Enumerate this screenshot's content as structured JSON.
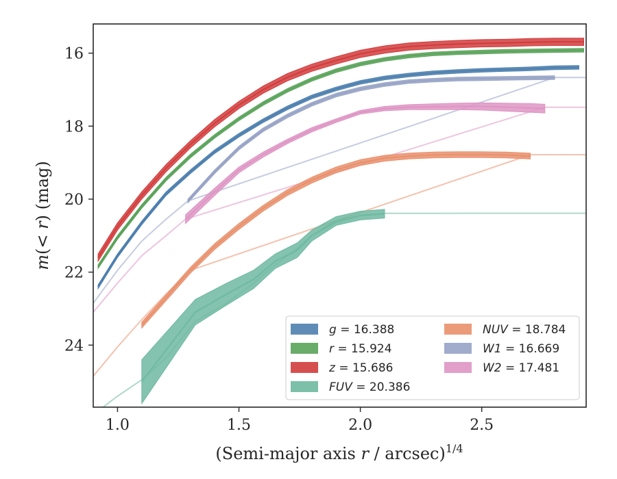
{
  "chart_data": {
    "type": "line",
    "xlabel": "(Semi-major axis r / arcsec)1/4",
    "ylabel": "m(< r) (mag)",
    "xlim": [
      0.9,
      2.93
    ],
    "ylim": [
      25.7,
      15.2
    ],
    "y_inverted": true,
    "xticks": [
      "1.0",
      "1.5",
      "2.0",
      "2.5"
    ],
    "yticks": [
      "16",
      "18",
      "20",
      "22",
      "24"
    ],
    "grid": false,
    "legend_position": "lower-right",
    "legend_columns": 2,
    "series": [
      {
        "name": "g = 16.388",
        "color": "#4c7fae",
        "total_mag": 16.388,
        "x": [
          0.92,
          1.0,
          1.1,
          1.2,
          1.3,
          1.4,
          1.5,
          1.6,
          1.7,
          1.8,
          1.9,
          2.0,
          2.1,
          2.2,
          2.3,
          2.4,
          2.5,
          2.6,
          2.7,
          2.8,
          2.9
        ],
        "y": [
          22.4,
          21.55,
          20.65,
          19.85,
          19.25,
          18.7,
          18.25,
          17.85,
          17.5,
          17.2,
          16.98,
          16.8,
          16.68,
          16.6,
          16.54,
          16.5,
          16.47,
          16.45,
          16.43,
          16.4,
          16.39
        ],
        "band": 0.05
      },
      {
        "name": "r = 15.924",
        "color": "#5aa35a",
        "total_mag": 15.924,
        "x": [
          0.92,
          1.0,
          1.1,
          1.2,
          1.3,
          1.4,
          1.5,
          1.6,
          1.7,
          1.8,
          1.9,
          2.0,
          2.1,
          2.2,
          2.3,
          2.4,
          2.5,
          2.6,
          2.7,
          2.8,
          2.92
        ],
        "y": [
          21.85,
          21.05,
          20.2,
          19.45,
          18.82,
          18.28,
          17.8,
          17.38,
          17.02,
          16.72,
          16.48,
          16.3,
          16.17,
          16.08,
          16.02,
          15.99,
          15.97,
          15.95,
          15.94,
          15.93,
          15.92
        ],
        "band": 0.05
      },
      {
        "name": "z = 15.686",
        "color": "#d23c3c",
        "total_mag": 15.686,
        "x": [
          0.92,
          1.0,
          1.1,
          1.2,
          1.3,
          1.4,
          1.5,
          1.6,
          1.7,
          1.8,
          1.9,
          2.0,
          2.1,
          2.2,
          2.3,
          2.4,
          2.5,
          2.6,
          2.7,
          2.8,
          2.92
        ],
        "y": [
          21.6,
          20.75,
          19.9,
          19.15,
          18.5,
          17.92,
          17.42,
          17.0,
          16.66,
          16.4,
          16.2,
          16.02,
          15.9,
          15.82,
          15.78,
          15.75,
          15.73,
          15.72,
          15.7,
          15.69,
          15.69
        ],
        "band": 0.1
      },
      {
        "name": "FUV = 20.386",
        "color": "#6fb9a1",
        "total_mag": 20.386,
        "x": [
          1.1,
          1.32,
          1.45,
          1.56,
          1.65,
          1.74,
          1.8,
          1.9,
          2.0,
          2.1
        ],
        "y": [
          25.0,
          23.1,
          22.6,
          22.2,
          21.7,
          21.4,
          21.0,
          20.6,
          20.45,
          20.4
        ],
        "band": [
          0.6,
          0.35,
          0.3,
          0.25,
          0.2,
          0.2,
          0.15,
          0.12,
          0.12,
          0.12
        ],
        "extrap_x": [
          0.9,
          1.0,
          1.1,
          1.2,
          1.32,
          1.45,
          1.56,
          1.65,
          1.74,
          1.8,
          1.9,
          2.0,
          2.1,
          2.5,
          2.93
        ],
        "extrap_y": [
          25.9,
          25.4,
          24.95,
          24.35,
          23.35,
          22.85,
          22.3,
          21.8,
          21.35,
          21.0,
          20.65,
          20.45,
          20.39,
          20.386,
          20.386
        ]
      },
      {
        "name": "NUV = 18.784",
        "color": "#e9906c",
        "total_mag": 18.784,
        "x": [
          1.1,
          1.2,
          1.3,
          1.4,
          1.5,
          1.6,
          1.7,
          1.8,
          1.9,
          2.0,
          2.1,
          2.2,
          2.3,
          2.4,
          2.5,
          2.6,
          2.7
        ],
        "y": [
          23.45,
          22.7,
          21.95,
          21.3,
          20.75,
          20.25,
          19.82,
          19.48,
          19.2,
          19.0,
          18.88,
          18.82,
          18.79,
          18.78,
          18.78,
          18.79,
          18.82
        ],
        "band": 0.08,
        "extrap_x": [
          0.9,
          1.0,
          1.1,
          1.2,
          1.3,
          2.7,
          2.93
        ],
        "extrap_y": [
          24.85,
          24.05,
          23.3,
          22.6,
          21.95,
          18.784,
          18.784
        ]
      },
      {
        "name": "W1 = 16.669",
        "color": "#97a3c6",
        "total_mag": 16.669,
        "x": [
          1.29,
          1.4,
          1.5,
          1.6,
          1.7,
          1.8,
          1.9,
          2.0,
          2.1,
          2.2,
          2.3,
          2.4,
          2.5,
          2.6,
          2.7,
          2.8
        ],
        "y": [
          20.05,
          19.25,
          18.6,
          18.1,
          17.72,
          17.4,
          17.15,
          16.98,
          16.86,
          16.78,
          16.74,
          16.71,
          16.7,
          16.69,
          16.68,
          16.67
        ],
        "band": 0.05,
        "extrap_x": [
          0.9,
          1.0,
          1.1,
          1.2,
          1.29,
          2.8,
          2.93
        ],
        "extrap_y": [
          22.85,
          21.95,
          21.15,
          20.55,
          20.05,
          16.669,
          16.669
        ]
      },
      {
        "name": "W2 = 17.481",
        "color": "#de95c4",
        "total_mag": 17.481,
        "x": [
          1.28,
          1.4,
          1.5,
          1.6,
          1.7,
          1.8,
          1.9,
          2.0,
          2.1,
          2.2,
          2.3,
          2.4,
          2.5,
          2.6,
          2.7,
          2.76
        ],
        "y": [
          20.55,
          19.8,
          19.2,
          18.78,
          18.42,
          18.1,
          17.85,
          17.62,
          17.52,
          17.48,
          17.47,
          17.46,
          17.46,
          17.48,
          17.5,
          17.52
        ],
        "band": [
          0.12,
          0.1,
          0.08,
          0.07,
          0.06,
          0.06,
          0.05,
          0.05,
          0.06,
          0.07,
          0.08,
          0.09,
          0.1,
          0.11,
          0.12,
          0.12
        ],
        "extrap_x": [
          0.9,
          1.0,
          1.1,
          1.2,
          1.28,
          2.76,
          2.93
        ],
        "extrap_y": [
          23.1,
          22.3,
          21.55,
          21.0,
          20.55,
          17.481,
          17.481
        ]
      }
    ],
    "legend": [
      {
        "label": "g = 16.388",
        "color": "#4c7fae",
        "column": 0,
        "row": 0
      },
      {
        "label": "r = 15.924",
        "color": "#5aa35a",
        "column": 0,
        "row": 1
      },
      {
        "label": "z = 15.686",
        "color": "#d23c3c",
        "column": 0,
        "row": 2
      },
      {
        "label": "FUV = 20.386",
        "color": "#6fb9a1",
        "column": 0,
        "row": 3
      },
      {
        "label": "NUV = 18.784",
        "color": "#e9906c",
        "column": 1,
        "row": 0
      },
      {
        "label": "W1 = 16.669",
        "color": "#97a3c6",
        "column": 1,
        "row": 1
      },
      {
        "label": "W2 = 17.481",
        "color": "#de95c4",
        "column": 1,
        "row": 2
      }
    ]
  }
}
